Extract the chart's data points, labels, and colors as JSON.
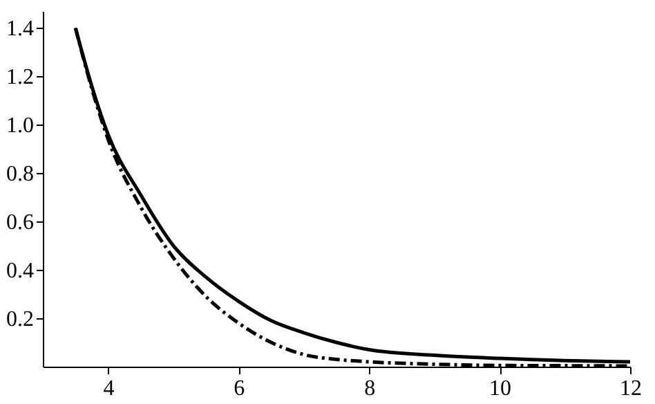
{
  "chart_data": {
    "type": "line",
    "xlim": [
      3,
      12
    ],
    "ylim": [
      0,
      1.47
    ],
    "xticks": [
      4,
      6,
      8,
      10,
      12
    ],
    "yticks": [
      0.2,
      0.4,
      0.6,
      0.8,
      {
        "value": 1.0,
        "label": "1.0"
      },
      1.2,
      1.4
    ],
    "grid": false,
    "marker": "none",
    "series": [
      {
        "color": "#000000",
        "line_style": "solid",
        "x": [
          3.5,
          3.75,
          4,
          4.5,
          5,
          5.5,
          6,
          6.5,
          7,
          7.5,
          8,
          9,
          10,
          11,
          12
        ],
        "values": [
          1.4,
          1.16,
          0.96,
          0.71,
          0.5,
          0.37,
          0.27,
          0.19,
          0.14,
          0.1,
          0.07,
          0.047,
          0.034,
          0.025,
          0.02
        ]
      },
      {
        "color": "#000000",
        "line_style": "dashed",
        "x": [
          3.5,
          3.75,
          4,
          4.5,
          5,
          5.5,
          6,
          6.5,
          7,
          7.5,
          8,
          9,
          10,
          11,
          12
        ],
        "values": [
          1.4,
          1.15,
          0.94,
          0.66,
          0.45,
          0.29,
          0.18,
          0.1,
          0.05,
          0.03,
          0.02,
          0.01,
          0.005,
          0.004,
          0.003
        ]
      }
    ]
  }
}
